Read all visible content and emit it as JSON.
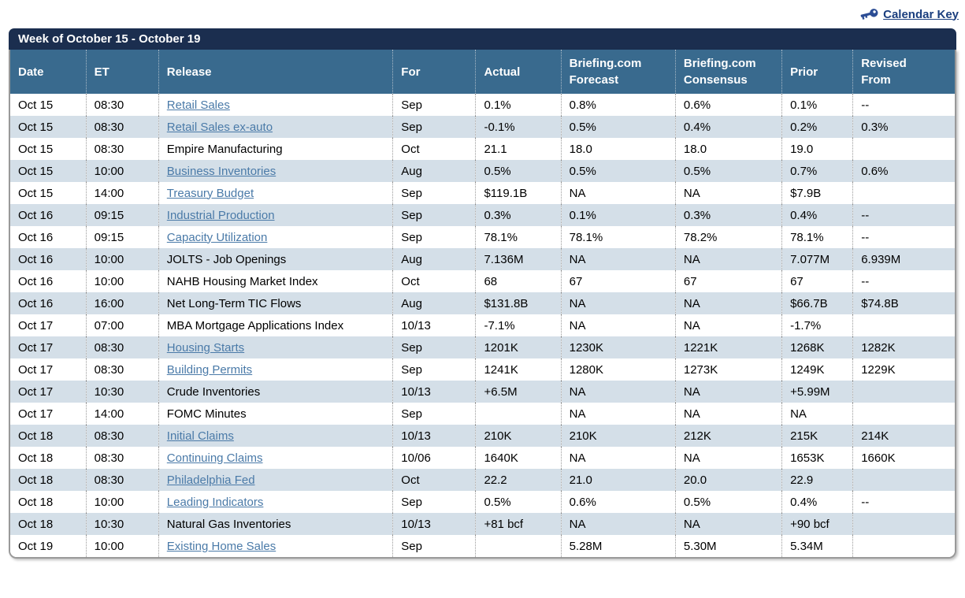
{
  "calendar_key": {
    "label": "Calendar Key"
  },
  "colors": {
    "title_bar": "#1b2e4f",
    "header_bar": "#396a8e",
    "row_stripe": "#d4dfe8",
    "link": "#4a7aa8",
    "key_link": "#1a3e7e",
    "outer_border": "#999999"
  },
  "table": {
    "title": "Week of October 15 - October 19",
    "columns": [
      "Date",
      "ET",
      "Release",
      "For",
      "Actual",
      "Briefing.com Forecast",
      "Briefing.com Consensus",
      "Prior",
      "Revised From"
    ],
    "rows": [
      {
        "date": "Oct 15",
        "et": "08:30",
        "release": "Retail Sales",
        "link": true,
        "for": "Sep",
        "actual": "0.1%",
        "forecast": "0.8%",
        "consensus": "0.6%",
        "prior": "0.1%",
        "revised": "--"
      },
      {
        "date": "Oct 15",
        "et": "08:30",
        "release": "Retail Sales ex-auto",
        "link": true,
        "for": "Sep",
        "actual": "-0.1%",
        "forecast": "0.5%",
        "consensus": "0.4%",
        "prior": "0.2%",
        "revised": "0.3%"
      },
      {
        "date": "Oct 15",
        "et": "08:30",
        "release": "Empire Manufacturing",
        "link": false,
        "for": "Oct",
        "actual": "21.1",
        "forecast": "18.0",
        "consensus": "18.0",
        "prior": "19.0",
        "revised": ""
      },
      {
        "date": "Oct 15",
        "et": "10:00",
        "release": "Business Inventories",
        "link": true,
        "for": "Aug",
        "actual": "0.5%",
        "forecast": "0.5%",
        "consensus": "0.5%",
        "prior": "0.7%",
        "revised": "0.6%"
      },
      {
        "date": "Oct 15",
        "et": "14:00",
        "release": "Treasury Budget",
        "link": true,
        "for": "Sep",
        "actual": "$119.1B",
        "forecast": "NA",
        "consensus": "NA",
        "prior": "$7.9B",
        "revised": ""
      },
      {
        "date": "Oct 16",
        "et": "09:15",
        "release": "Industrial Production",
        "link": true,
        "for": "Sep",
        "actual": "0.3%",
        "forecast": "0.1%",
        "consensus": "0.3%",
        "prior": "0.4%",
        "revised": "--"
      },
      {
        "date": "Oct 16",
        "et": "09:15",
        "release": "Capacity Utilization",
        "link": true,
        "for": "Sep",
        "actual": "78.1%",
        "forecast": "78.1%",
        "consensus": "78.2%",
        "prior": "78.1%",
        "revised": "--"
      },
      {
        "date": "Oct 16",
        "et": "10:00",
        "release": "JOLTS - Job Openings",
        "link": false,
        "for": "Aug",
        "actual": "7.136M",
        "forecast": "NA",
        "consensus": "NA",
        "prior": "7.077M",
        "revised": "6.939M"
      },
      {
        "date": "Oct 16",
        "et": "10:00",
        "release": "NAHB Housing Market Index",
        "link": false,
        "for": "Oct",
        "actual": "68",
        "forecast": "67",
        "consensus": "67",
        "prior": "67",
        "revised": "--"
      },
      {
        "date": "Oct 16",
        "et": "16:00",
        "release": "Net Long-Term TIC Flows",
        "link": false,
        "for": "Aug",
        "actual": "$131.8B",
        "forecast": "NA",
        "consensus": "NA",
        "prior": "$66.7B",
        "revised": "$74.8B"
      },
      {
        "date": "Oct 17",
        "et": "07:00",
        "release": "MBA Mortgage Applications Index",
        "link": false,
        "for": "10/13",
        "actual": "-7.1%",
        "forecast": "NA",
        "consensus": "NA",
        "prior": "-1.7%",
        "revised": ""
      },
      {
        "date": "Oct 17",
        "et": "08:30",
        "release": "Housing Starts",
        "link": true,
        "for": "Sep",
        "actual": "1201K",
        "forecast": "1230K",
        "consensus": "1221K",
        "prior": "1268K",
        "revised": "1282K"
      },
      {
        "date": "Oct 17",
        "et": "08:30",
        "release": "Building Permits",
        "link": true,
        "for": "Sep",
        "actual": "1241K",
        "forecast": "1280K",
        "consensus": "1273K",
        "prior": "1249K",
        "revised": "1229K"
      },
      {
        "date": "Oct 17",
        "et": "10:30",
        "release": "Crude Inventories",
        "link": false,
        "for": "10/13",
        "actual": "+6.5M",
        "forecast": "NA",
        "consensus": "NA",
        "prior": "+5.99M",
        "revised": ""
      },
      {
        "date": "Oct 17",
        "et": "14:00",
        "release": "FOMC Minutes",
        "link": false,
        "for": "Sep",
        "actual": "",
        "forecast": "NA",
        "consensus": "NA",
        "prior": "NA",
        "revised": ""
      },
      {
        "date": "Oct 18",
        "et": "08:30",
        "release": "Initial Claims",
        "link": true,
        "for": "10/13",
        "actual": "210K",
        "forecast": "210K",
        "consensus": "212K",
        "prior": "215K",
        "revised": "214K"
      },
      {
        "date": "Oct 18",
        "et": "08:30",
        "release": "Continuing Claims",
        "link": true,
        "for": "10/06",
        "actual": "1640K",
        "forecast": "NA",
        "consensus": "NA",
        "prior": "1653K",
        "revised": "1660K"
      },
      {
        "date": "Oct 18",
        "et": "08:30",
        "release": "Philadelphia Fed",
        "link": true,
        "for": "Oct",
        "actual": "22.2",
        "forecast": "21.0",
        "consensus": "20.0",
        "prior": "22.9",
        "revised": ""
      },
      {
        "date": "Oct 18",
        "et": "10:00",
        "release": "Leading Indicators",
        "link": true,
        "for": "Sep",
        "actual": "0.5%",
        "forecast": "0.6%",
        "consensus": "0.5%",
        "prior": "0.4%",
        "revised": "--"
      },
      {
        "date": "Oct 18",
        "et": "10:30",
        "release": "Natural Gas Inventories",
        "link": false,
        "for": "10/13",
        "actual": "+81 bcf",
        "forecast": "NA",
        "consensus": "NA",
        "prior": "+90 bcf",
        "revised": ""
      },
      {
        "date": "Oct 19",
        "et": "10:00",
        "release": "Existing Home Sales",
        "link": true,
        "for": "Sep",
        "actual": "",
        "forecast": "5.28M",
        "consensus": "5.30M",
        "prior": "5.34M",
        "revised": ""
      }
    ]
  }
}
